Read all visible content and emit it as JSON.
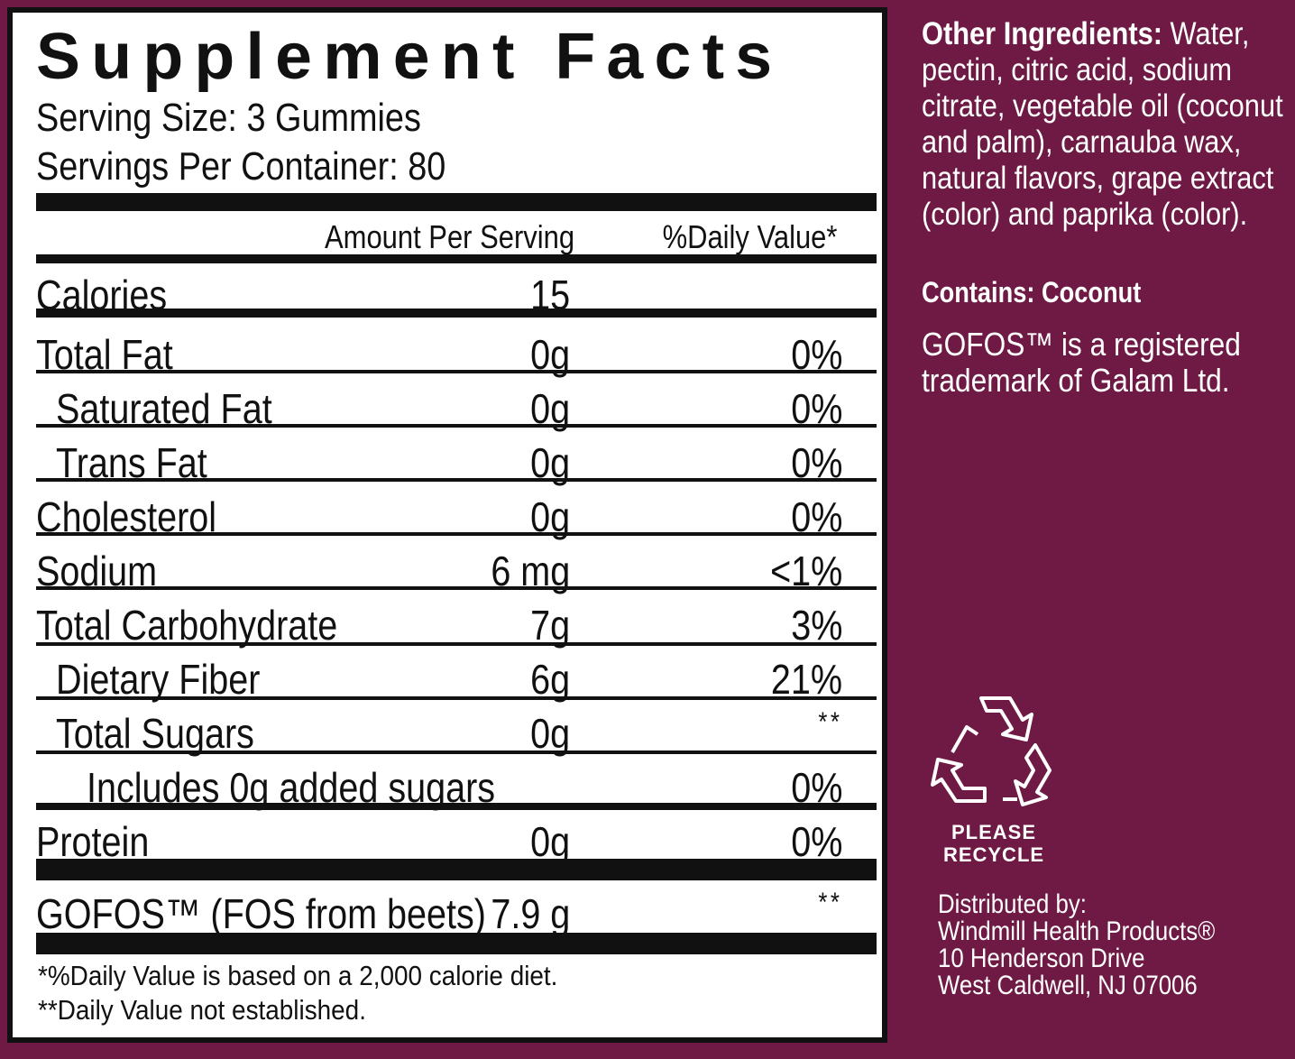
{
  "facts": {
    "title": "Supplement Facts",
    "serving_size": "Serving Size: 3 Gummies",
    "servings_per_container": "Servings Per Container: 80",
    "col_amount": "Amount Per Serving",
    "col_dv": "%Daily Value*",
    "rows": [
      {
        "label": "Calories",
        "amount": "15",
        "dv": ""
      },
      {
        "label": "Total Fat",
        "amount": "0g",
        "dv": "0%"
      },
      {
        "label": "Saturated Fat",
        "amount": "0g",
        "dv": "0%"
      },
      {
        "label": "Trans Fat",
        "amount": "0g",
        "dv": "0%"
      },
      {
        "label": "Cholesterol",
        "amount": "0g",
        "dv": "0%"
      },
      {
        "label": "Sodium",
        "amount": "6 mg",
        "dv": "<1%"
      },
      {
        "label": "Total Carbohydrate",
        "amount": "7g",
        "dv": "3%"
      },
      {
        "label": "Dietary Fiber",
        "amount": "6g",
        "dv": "21%"
      },
      {
        "label": "Total Sugars",
        "amount": "0g",
        "dv": "**"
      },
      {
        "label": "Includes 0g added sugars",
        "amount": "",
        "dv": "0%"
      },
      {
        "label": "Protein",
        "amount": "0g",
        "dv": "0%"
      },
      {
        "label": "GOFOS™ (FOS from beets)",
        "amount": "7.9 g",
        "dv": "**"
      }
    ],
    "footnote_1": "*%Daily Value is based on a 2,000 calorie diet.",
    "footnote_2": "**Daily Value not established."
  },
  "side": {
    "ingredients_heading": "Other Ingredients:",
    "ingredients_text": "Water, pectin, citric acid, sodium citrate, vegetable oil (coconut and palm), carnauba wax, natural flavors, grape extract (color) and paprika (color).",
    "contains": "Contains: Coconut",
    "trademark": "GOFOS™ is a registered trademark of Galam Ltd.",
    "recycle_line1": "PLEASE",
    "recycle_line2": "RECYCLE",
    "recycle_icon": "recycle-icon",
    "distributed_by": "Distributed by:",
    "company": "Windmill Health Products®",
    "address_1": "10 Henderson Drive",
    "address_2": "West Caldwell, NJ  07006"
  },
  "colors": {
    "background": "#6e1a44",
    "panel": "#ffffff",
    "ink": "#111111"
  }
}
